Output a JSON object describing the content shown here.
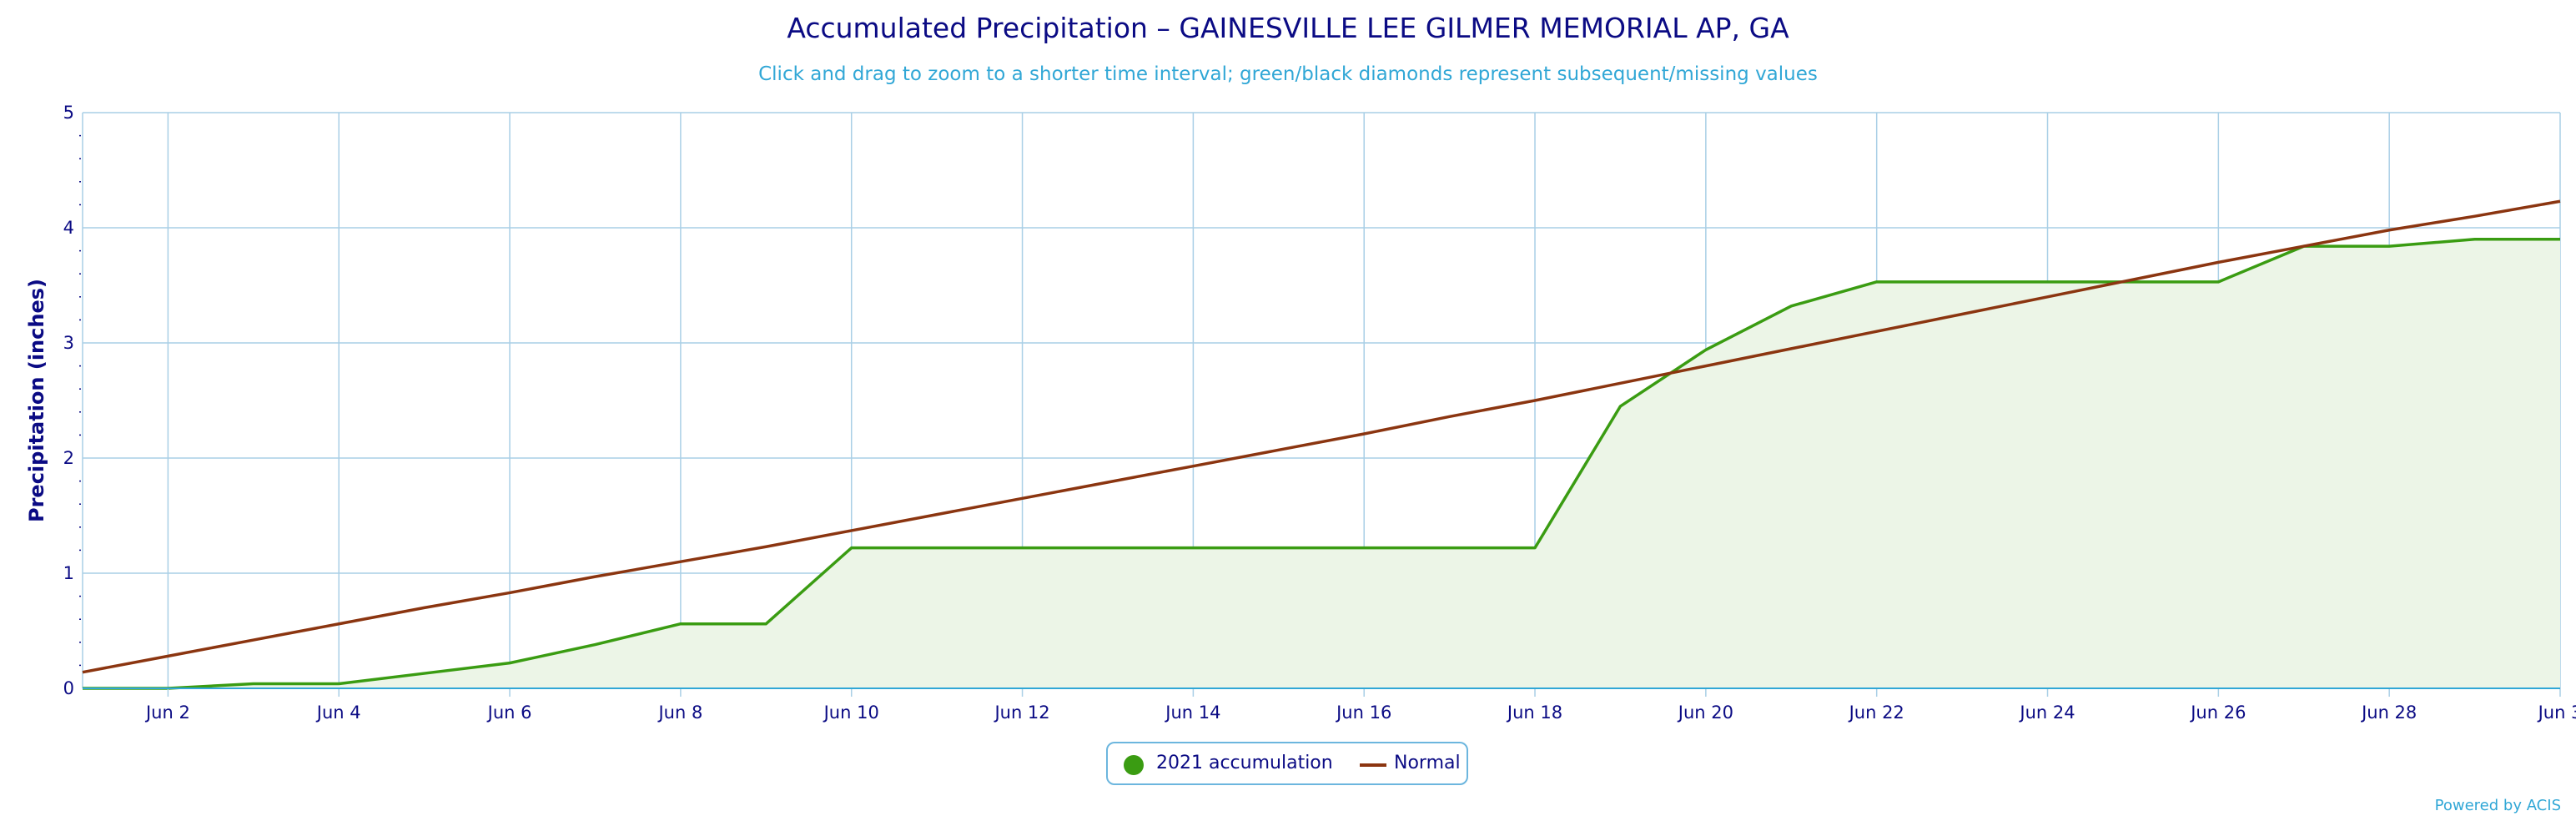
{
  "chart_data": {
    "type": "area",
    "title": "Accumulated Precipitation – GAINESVILLE LEE GILMER MEMORIAL AP, GA",
    "subtitle": "Click and drag to zoom to a shorter time interval; green/black diamonds represent subsequent/missing values",
    "ylabel": "Precipitation (inches)",
    "xlabel": "",
    "ylim": [
      0,
      5
    ],
    "y_ticks": [
      "0",
      "1",
      "2",
      "3",
      "4",
      "5"
    ],
    "x_ticks": [
      "Jun 2",
      "Jun 4",
      "Jun 6",
      "Jun 8",
      "Jun 10",
      "Jun 12",
      "Jun 14",
      "Jun 16",
      "Jun 18",
      "Jun 20",
      "Jun 22",
      "Jun 24",
      "Jun 26",
      "Jun 28",
      "Jun 3"
    ],
    "x": [
      "Jun 1",
      "Jun 2",
      "Jun 3",
      "Jun 4",
      "Jun 5",
      "Jun 6",
      "Jun 7",
      "Jun 8",
      "Jun 9",
      "Jun 10",
      "Jun 11",
      "Jun 12",
      "Jun 13",
      "Jun 14",
      "Jun 15",
      "Jun 16",
      "Jun 17",
      "Jun 18",
      "Jun 19",
      "Jun 20",
      "Jun 21",
      "Jun 22",
      "Jun 23",
      "Jun 24",
      "Jun 25",
      "Jun 26",
      "Jun 27",
      "Jun 28",
      "Jun 29",
      "Jun 30"
    ],
    "series": [
      {
        "name": "2021 accumulation",
        "color": "#3a9c12",
        "fill": "#ecf5e7",
        "values": [
          0,
          0,
          0.04,
          0.04,
          0.13,
          0.22,
          0.38,
          0.56,
          0.56,
          1.22,
          1.22,
          1.22,
          1.22,
          1.22,
          1.22,
          1.22,
          1.22,
          1.22,
          2.45,
          2.94,
          3.32,
          3.53,
          3.53,
          3.53,
          3.53,
          3.53,
          3.84,
          3.84,
          3.9,
          3.9
        ]
      },
      {
        "name": "Normal",
        "color": "#8b3510",
        "values": [
          0.14,
          0.28,
          0.42,
          0.56,
          0.7,
          0.83,
          0.97,
          1.1,
          1.23,
          1.37,
          1.51,
          1.65,
          1.79,
          1.93,
          2.07,
          2.21,
          2.36,
          2.5,
          2.65,
          2.8,
          2.95,
          3.1,
          3.25,
          3.4,
          3.55,
          3.7,
          3.84,
          3.98,
          4.1,
          4.23
        ]
      }
    ],
    "grid": true,
    "legend_position": "bottom-center",
    "credit": "Powered by ACIS"
  }
}
